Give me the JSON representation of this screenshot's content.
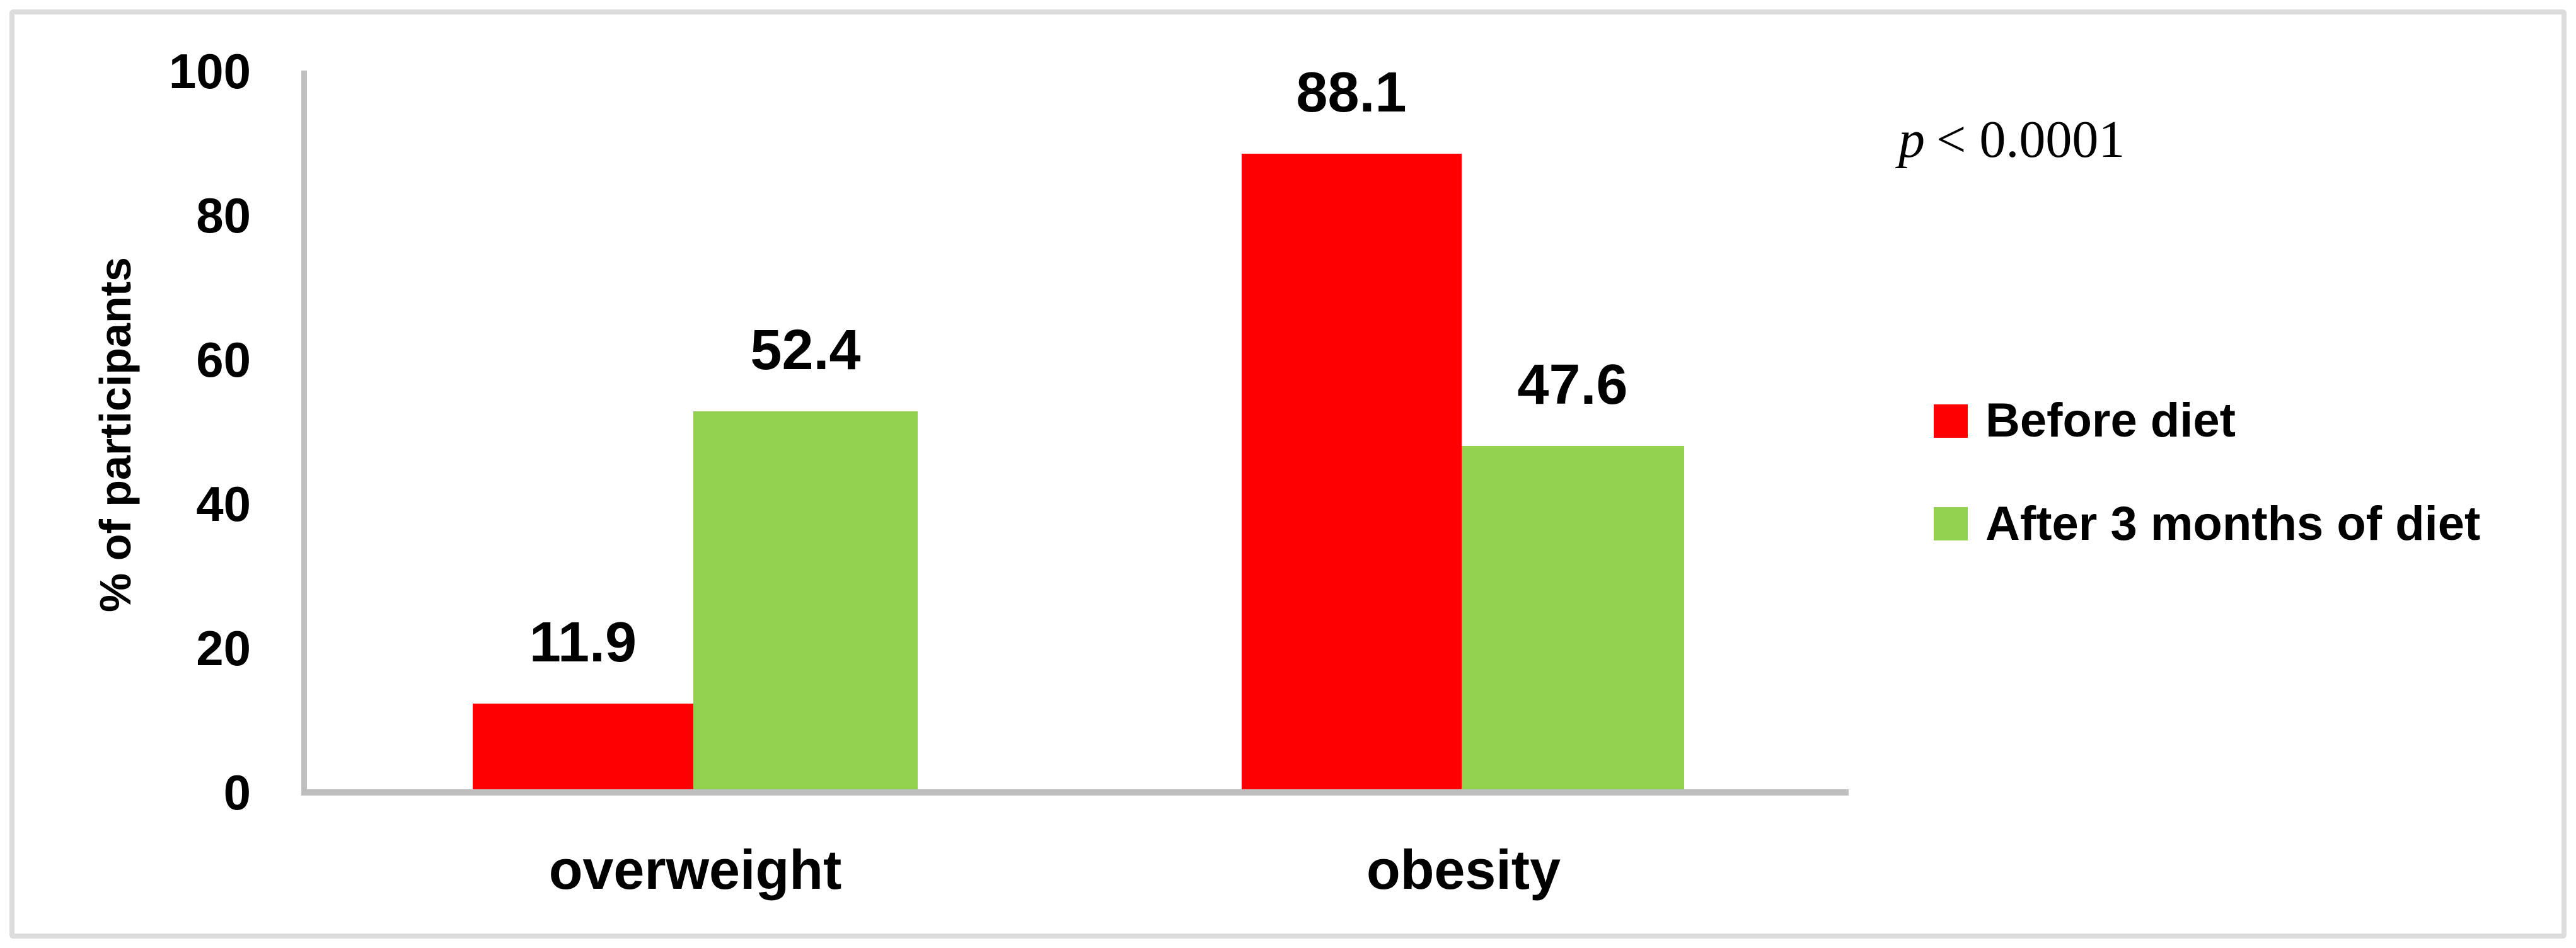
{
  "figure": {
    "background": "#FFFFFF",
    "border_color": "#DCDCDC",
    "axis_color": "#BFBFBF",
    "text_color": "#000000"
  },
  "chart_data": {
    "type": "bar",
    "title": "",
    "categories": [
      "overweight",
      "obesity"
    ],
    "series": [
      {
        "name": "Before diet",
        "color": "#FF0000",
        "values": [
          11.9,
          88.1
        ]
      },
      {
        "name": "After 3 months of diet",
        "color": "#92D050",
        "values": [
          52.4,
          47.6
        ]
      }
    ],
    "xlabel": "",
    "ylabel": "% of participants",
    "ylim": [
      0,
      100
    ],
    "yticks": [
      0,
      20,
      40,
      60,
      80,
      100
    ],
    "grid": false,
    "legend_position": "right",
    "data_labels_shown": true,
    "annotation": "p < 0.0001"
  },
  "annotation": {
    "p_symbol": "p",
    "rest": "< 0.0001"
  }
}
